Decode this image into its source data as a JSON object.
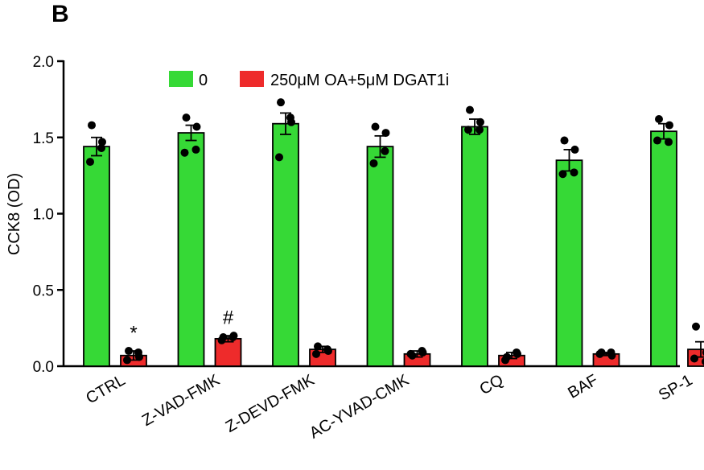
{
  "panel_label": "B",
  "colors": {
    "green": "#36d936",
    "red": "#ee2b2b",
    "axis": "#000000",
    "dot": "#000000"
  },
  "chart_data": {
    "type": "bar",
    "ylabel": "CCK8 (OD)",
    "ylim": [
      0,
      2.0
    ],
    "yticks": [
      "0.0",
      "0.5",
      "1.0",
      "1.5",
      "2.0"
    ],
    "ytick_values": [
      0,
      0.5,
      1.0,
      1.5,
      2.0
    ],
    "categories": [
      "CTRL",
      "Z-VAD-FMK",
      "Z-DEVD-FMK",
      "AC-YVAD-CMK",
      "CQ",
      "BAF",
      "SP-1"
    ],
    "legend_position": "top",
    "series": [
      {
        "name": "0",
        "color": "#36d936",
        "values": [
          1.44,
          1.53,
          1.59,
          1.44,
          1.57,
          1.35,
          1.54
        ],
        "errors": [
          0.06,
          0.05,
          0.07,
          0.07,
          0.05,
          0.07,
          0.05
        ],
        "points": [
          [
            1.58,
            1.47,
            1.34,
            1.43
          ],
          [
            1.63,
            1.57,
            1.4,
            1.42
          ],
          [
            1.73,
            1.6,
            1.37,
            1.63
          ],
          [
            1.57,
            1.53,
            1.33,
            1.41
          ],
          [
            1.68,
            1.6,
            1.55,
            1.55
          ],
          [
            1.48,
            1.42,
            1.26,
            1.27
          ],
          [
            1.62,
            1.58,
            1.48,
            1.47
          ]
        ]
      },
      {
        "name": "250μM OA+5μM DGAT1i",
        "color": "#ee2b2b",
        "values": [
          0.07,
          0.18,
          0.11,
          0.08,
          0.07,
          0.08,
          0.11
        ],
        "errors": [
          0.03,
          0.02,
          0.02,
          0.02,
          0.02,
          0.01,
          0.05
        ],
        "points": [
          [
            0.1,
            0.06,
            0.04,
            0.09
          ],
          [
            0.19,
            0.2,
            0.17,
            0.19
          ],
          [
            0.13,
            0.1,
            0.08,
            0.11
          ],
          [
            0.07,
            0.09,
            0.08,
            0.1
          ],
          [
            0.06,
            0.08,
            0.04,
            0.09
          ],
          [
            0.09,
            0.07,
            0.08,
            0.09
          ],
          [
            0.26,
            0.09,
            0.05,
            0.03
          ]
        ]
      }
    ],
    "annotations": [
      {
        "text": "*",
        "category_index": 0,
        "series_index": 1,
        "y": 0.23
      },
      {
        "text": "#",
        "category_index": 1,
        "series_index": 1,
        "y": 0.33
      }
    ]
  }
}
